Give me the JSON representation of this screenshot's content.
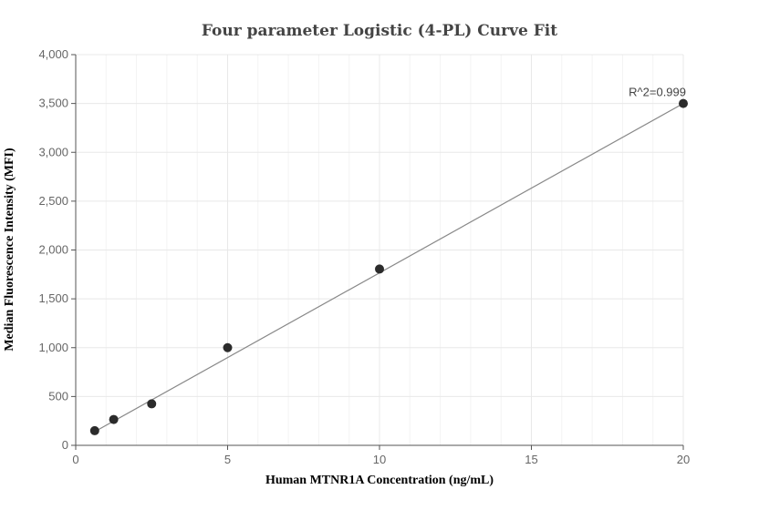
{
  "chart_data": {
    "type": "scatter",
    "title": "Four parameter Logistic (4-PL) Curve Fit",
    "xlabel": "Human MTNR1A Concentration (ng/mL)",
    "ylabel": "Median Fluorescence Intensity (MFI)",
    "xlim": [
      0,
      20
    ],
    "ylim": [
      0,
      4000
    ],
    "x_ticks": [
      0,
      5,
      10,
      15,
      20
    ],
    "x_tick_labels": [
      "0",
      "5",
      "10",
      "15",
      "20"
    ],
    "y_ticks": [
      0,
      500,
      1000,
      1500,
      2000,
      2500,
      3000,
      3500,
      4000
    ],
    "y_tick_labels": [
      "0",
      "500",
      "1,000",
      "1,500",
      "2,000",
      "2,500",
      "3,000",
      "3,500",
      "4,000"
    ],
    "grid": true,
    "series": [
      {
        "points": [
          {
            "x": 0.625,
            "y": 150
          },
          {
            "x": 1.25,
            "y": 265
          },
          {
            "x": 2.5,
            "y": 425
          },
          {
            "x": 5,
            "y": 1000
          },
          {
            "x": 10,
            "y": 1805
          },
          {
            "x": 20,
            "y": 3500
          }
        ],
        "fit_line": [
          {
            "x": 0.625,
            "y": 140
          },
          {
            "x": 20,
            "y": 3500
          }
        ]
      }
    ],
    "annotations": [
      {
        "text": "R^2=0.999",
        "x": 20,
        "y": 3500
      }
    ],
    "colors": {
      "points": "#2b2b2b",
      "fit_line": "#888888",
      "grid": "#e8e8e8"
    }
  }
}
